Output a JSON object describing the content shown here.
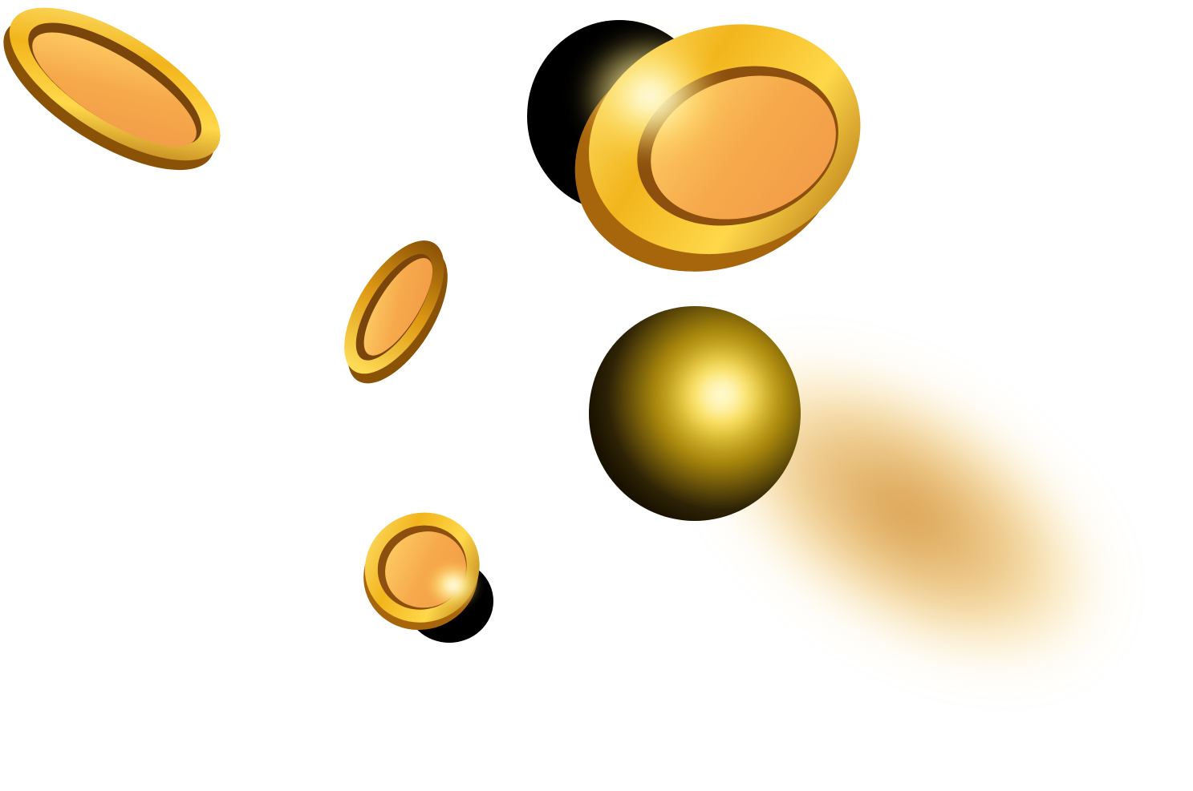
{
  "scene": {
    "subject": "falling-gold-coins",
    "background_color": "#ffffff"
  },
  "colors": {
    "gold_rim_light": "#ffe77a",
    "gold_rim_mid": "#f2b51c",
    "gold_rim_dark": "#a8660c",
    "gold_face_light": "#ffd36b",
    "gold_face_mid": "#f6a94a",
    "gold_face_dark": "#c77518",
    "inner_lip": "#8c4f0d",
    "shadow": "#000000",
    "blur_trail": "#d89a3a",
    "glint": "#fffbe0"
  },
  "coins": [
    {
      "id": "coin-top-left",
      "kind": "edge-tilted"
    },
    {
      "id": "coin-top-center",
      "kind": "large-face-with-glint"
    },
    {
      "id": "coin-mid-left",
      "kind": "edge-tilted-small"
    },
    {
      "id": "coin-bottom-left",
      "kind": "small-face-with-glint"
    },
    {
      "id": "coin-center-blurred",
      "kind": "motion-blurred-sphere"
    }
  ]
}
